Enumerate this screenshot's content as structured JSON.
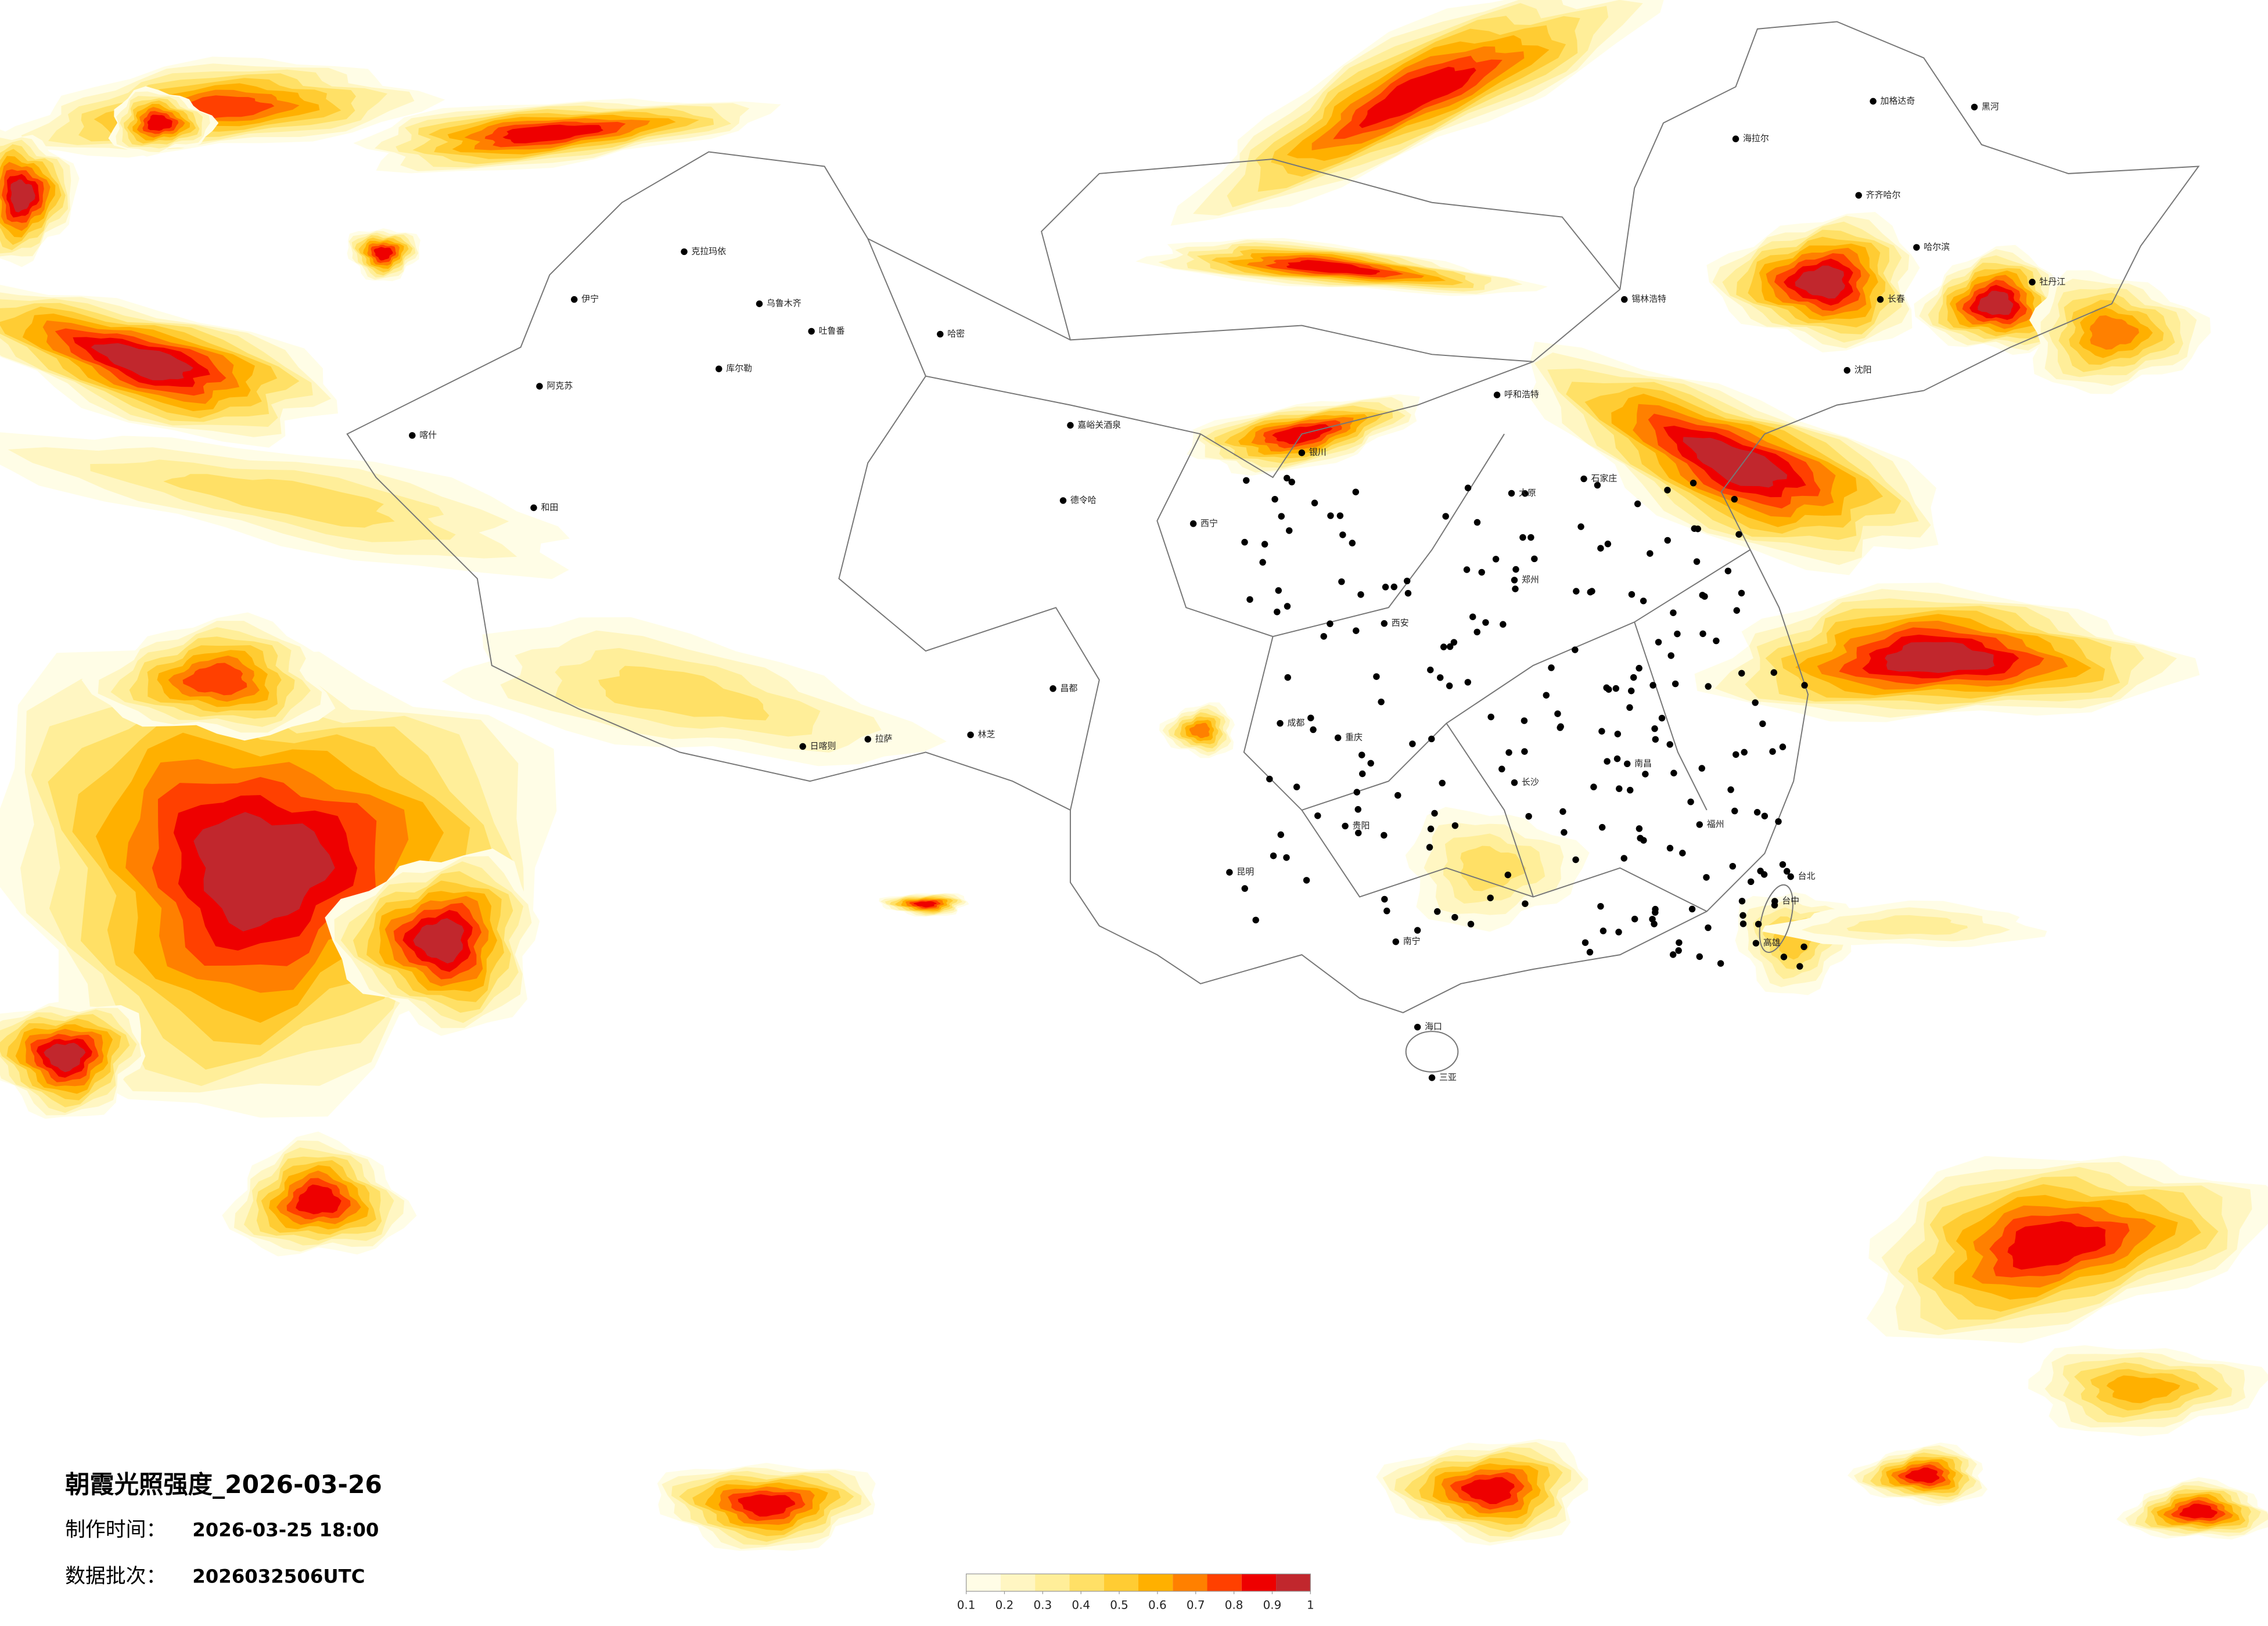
{
  "header": {
    "title": "朝霞光照强度_2026-03-26",
    "made_label": "制作时间：",
    "made_time": "2026-03-25 18:00",
    "batch_label": "数据批次：",
    "batch": "2026032506UTC"
  },
  "legend": {
    "colors": [
      "#fffde6",
      "#fff6c2",
      "#ffee99",
      "#ffe066",
      "#ffcc33",
      "#ffb000",
      "#ff8000",
      "#ff4000",
      "#ee0000",
      "#c1272d"
    ],
    "ticks": [
      0.1,
      0.2,
      0.3,
      0.4,
      0.5,
      0.6,
      0.7,
      0.8,
      0.9,
      1
    ]
  },
  "cities": [
    "克拉玛依",
    "伊宁",
    "乌鲁木齐",
    "吐鲁番",
    "哈密",
    "库尔勒",
    "阿克苏",
    "喀什",
    "和田",
    "海拉尔",
    "加格达奇",
    "黑河",
    "齐齐哈尔",
    "哈尔滨",
    "长春",
    "沈阳",
    "呼和浩特",
    "嘉峪关酒泉",
    "德令哈",
    "西宁",
    "银川",
    "拉萨",
    "日喀则",
    "林芝",
    "昌都",
    "成都",
    "重庆",
    "贵阳",
    "昆明",
    "南宁",
    "海口",
    "三亚",
    "长沙",
    "南昌",
    "福州",
    "台北",
    "台中",
    "高雄",
    "郑州",
    "西安",
    "太原",
    "石家庄",
    "锡林浩特",
    "牡丹江"
  ]
}
